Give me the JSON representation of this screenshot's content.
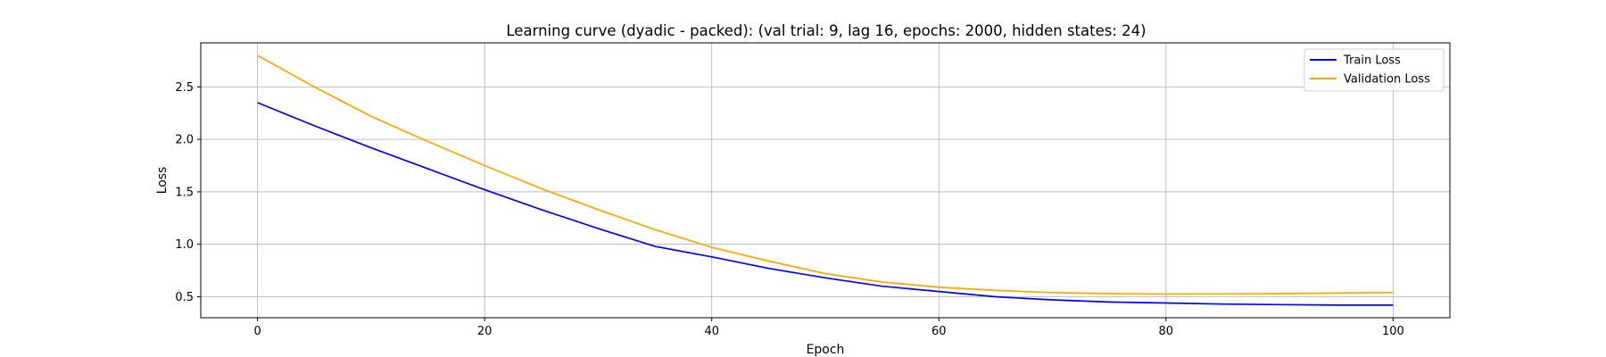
{
  "chart_data": {
    "type": "line",
    "title": "Learning curve (dyadic - packed): (val trial: 9, lag 16, epochs: 2000, hidden states: 24)",
    "xlabel": "Epoch",
    "ylabel": "Loss",
    "xlim": [
      -5,
      105
    ],
    "ylim": [
      0.3,
      2.92
    ],
    "xticks": [
      0,
      20,
      40,
      60,
      80,
      100
    ],
    "yticks": [
      0.5,
      1.0,
      1.5,
      2.0,
      2.5
    ],
    "xtick_labels": [
      "0",
      "20",
      "40",
      "60",
      "80",
      "100"
    ],
    "ytick_labels": [
      "0.5",
      "1.0",
      "1.5",
      "2.0",
      "2.5"
    ],
    "grid": true,
    "legend_position": "top-right",
    "x": [
      0,
      5,
      10,
      15,
      20,
      25,
      30,
      35,
      40,
      45,
      50,
      55,
      60,
      65,
      70,
      75,
      80,
      85,
      90,
      95,
      100
    ],
    "series": [
      {
        "name": "Train Loss",
        "color": "#0000ff",
        "values": [
          2.35,
          2.13,
          1.92,
          1.72,
          1.52,
          1.33,
          1.15,
          0.98,
          0.88,
          0.77,
          0.68,
          0.6,
          0.55,
          0.5,
          0.47,
          0.45,
          0.44,
          0.43,
          0.425,
          0.42,
          0.42
        ]
      },
      {
        "name": "Validation Loss",
        "color": "#ffa500",
        "values": [
          2.8,
          2.5,
          2.22,
          1.98,
          1.75,
          1.53,
          1.33,
          1.14,
          0.97,
          0.84,
          0.72,
          0.64,
          0.59,
          0.56,
          0.54,
          0.53,
          0.525,
          0.527,
          0.53,
          0.535,
          0.54
        ]
      }
    ]
  }
}
